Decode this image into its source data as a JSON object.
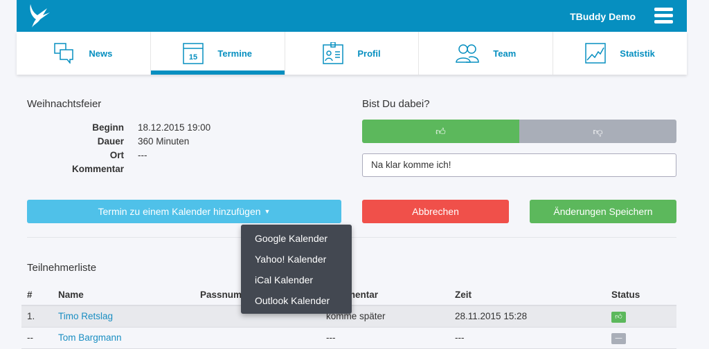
{
  "header": {
    "brand": "TBuddy Demo"
  },
  "nav": [
    {
      "label": "News",
      "icon": "chat-icon"
    },
    {
      "label": "Termine",
      "icon": "calendar-icon",
      "cal_day": "15",
      "active": true
    },
    {
      "label": "Profil",
      "icon": "id-card-icon"
    },
    {
      "label": "Team",
      "icon": "users-icon"
    },
    {
      "label": "Statistik",
      "icon": "chart-icon"
    }
  ],
  "event": {
    "title": "Weihnachtsfeier",
    "fields": [
      {
        "k": "Beginn",
        "v": "18.12.2015 19:00"
      },
      {
        "k": "Dauer",
        "v": "360 Minuten"
      },
      {
        "k": "Ort",
        "v": "---"
      },
      {
        "k": "Kommentar",
        "v": ""
      }
    ]
  },
  "rsvp": {
    "question": "Bist Du dabei?",
    "comment": "Na klar komme ich!",
    "yes_color": "#5cb85c",
    "no_color": "#a9aeb8"
  },
  "buttons": {
    "calendar": "Termin zu einem Kalender hinzufügen",
    "cancel": "Abbrechen",
    "save": "Änderungen Speichern"
  },
  "calendar_menu": [
    "Google Kalender",
    "Yahoo! Kalender",
    "iCal Kalender",
    "Outlook Kalender"
  ],
  "participants": {
    "title": "Teilnehmerliste",
    "columns": [
      "#",
      "Name",
      "Passnummer",
      "Kommentar",
      "Zeit",
      "Status"
    ],
    "rows": [
      {
        "n": "1.",
        "name": "Timo Retslag",
        "pass": "",
        "comment": "komme später",
        "time": "28.11.2015 15:28",
        "status": "yes"
      },
      {
        "n": "--",
        "name": "Tom Bargmann",
        "pass": "",
        "comment": "---",
        "time": "---",
        "status": "unknown"
      }
    ]
  }
}
